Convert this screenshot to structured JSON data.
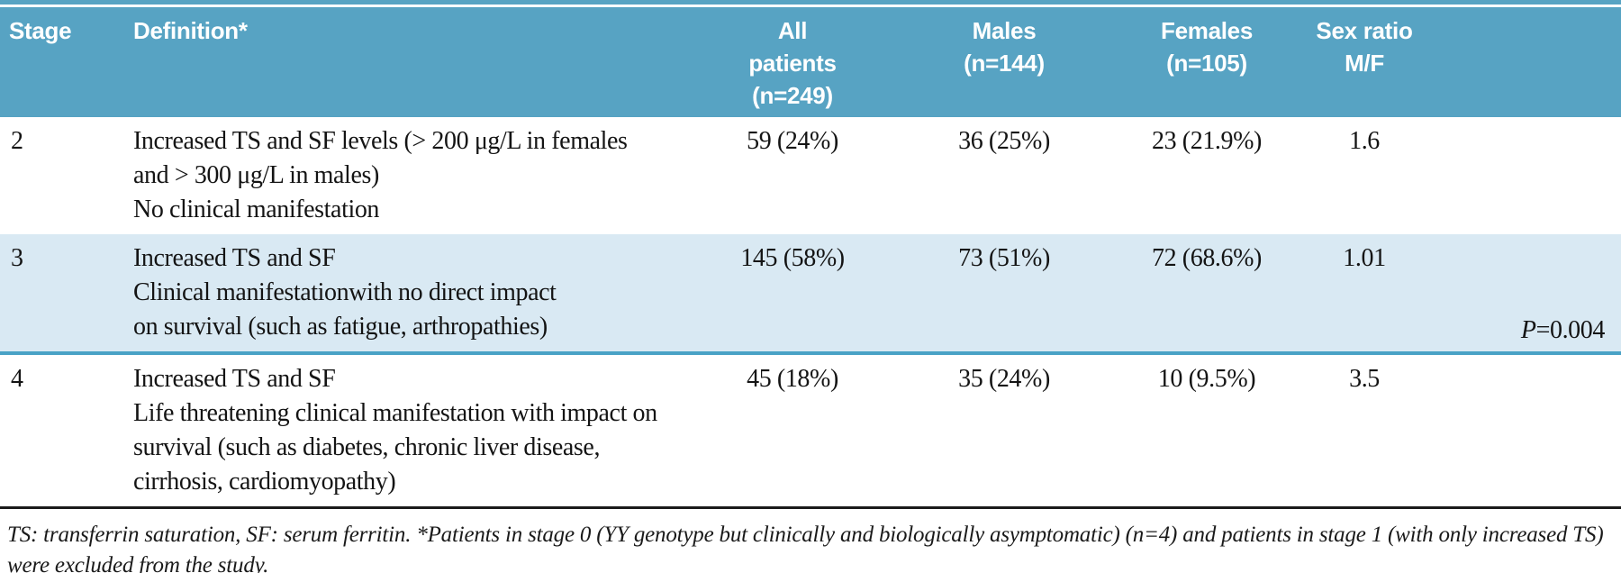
{
  "colors": {
    "header_bg": "#57a3c3",
    "alt_row_bg": "#d9e9f3",
    "row_separator_blue": "#49a2c6",
    "bottom_rule_dark": "#1b1b1b",
    "header_text": "#ffffff",
    "body_text": "#141414"
  },
  "table": {
    "columns": [
      {
        "label": "Stage"
      },
      {
        "label": "Definition*"
      },
      {
        "label": "All\npatients\n(n=249)"
      },
      {
        "label": "Males\n(n=144)"
      },
      {
        "label": "Females\n(n=105)"
      },
      {
        "label": "Sex ratio\nM/F"
      },
      {
        "label": ""
      }
    ],
    "rows": [
      {
        "stage": "2",
        "definition": "Increased TS and SF levels (> 200 μg/L in females\nand > 300 μg/L in males)\nNo clinical manifestation",
        "all_patients": "59 (24%)",
        "males": "36 (25%)",
        "females": "23 (21.9%)",
        "sex_ratio": "1.6",
        "p_label": "",
        "p_value": ""
      },
      {
        "stage": "3",
        "definition": "Increased TS and SF\nClinical manifestationwith no direct impact\non survival (such as fatigue, arthropathies)",
        "all_patients": "145 (58%)",
        "males": "73 (51%)",
        "females": "72 (68.6%)",
        "sex_ratio": "1.01",
        "p_label": "P",
        "p_value": "=0.004"
      },
      {
        "stage": "4",
        "definition": "Increased TS and SF\nLife threatening clinical manifestation with impact on\nsurvival (such as diabetes, chronic liver disease,\ncirrhosis, cardiomyopathy)",
        "all_patients": "45 (18%)",
        "males": "35 (24%)",
        "females": "10 (9.5%)",
        "sex_ratio": "3.5",
        "p_label": "",
        "p_value": ""
      }
    ],
    "footnote": "TS: transferrin saturation, SF: serum ferritin. *Patients in stage 0 (YY genotype but clinically and biologically asymptomatic) (n=4) and patients in stage 1 (with only increased TS) were excluded from the study."
  }
}
